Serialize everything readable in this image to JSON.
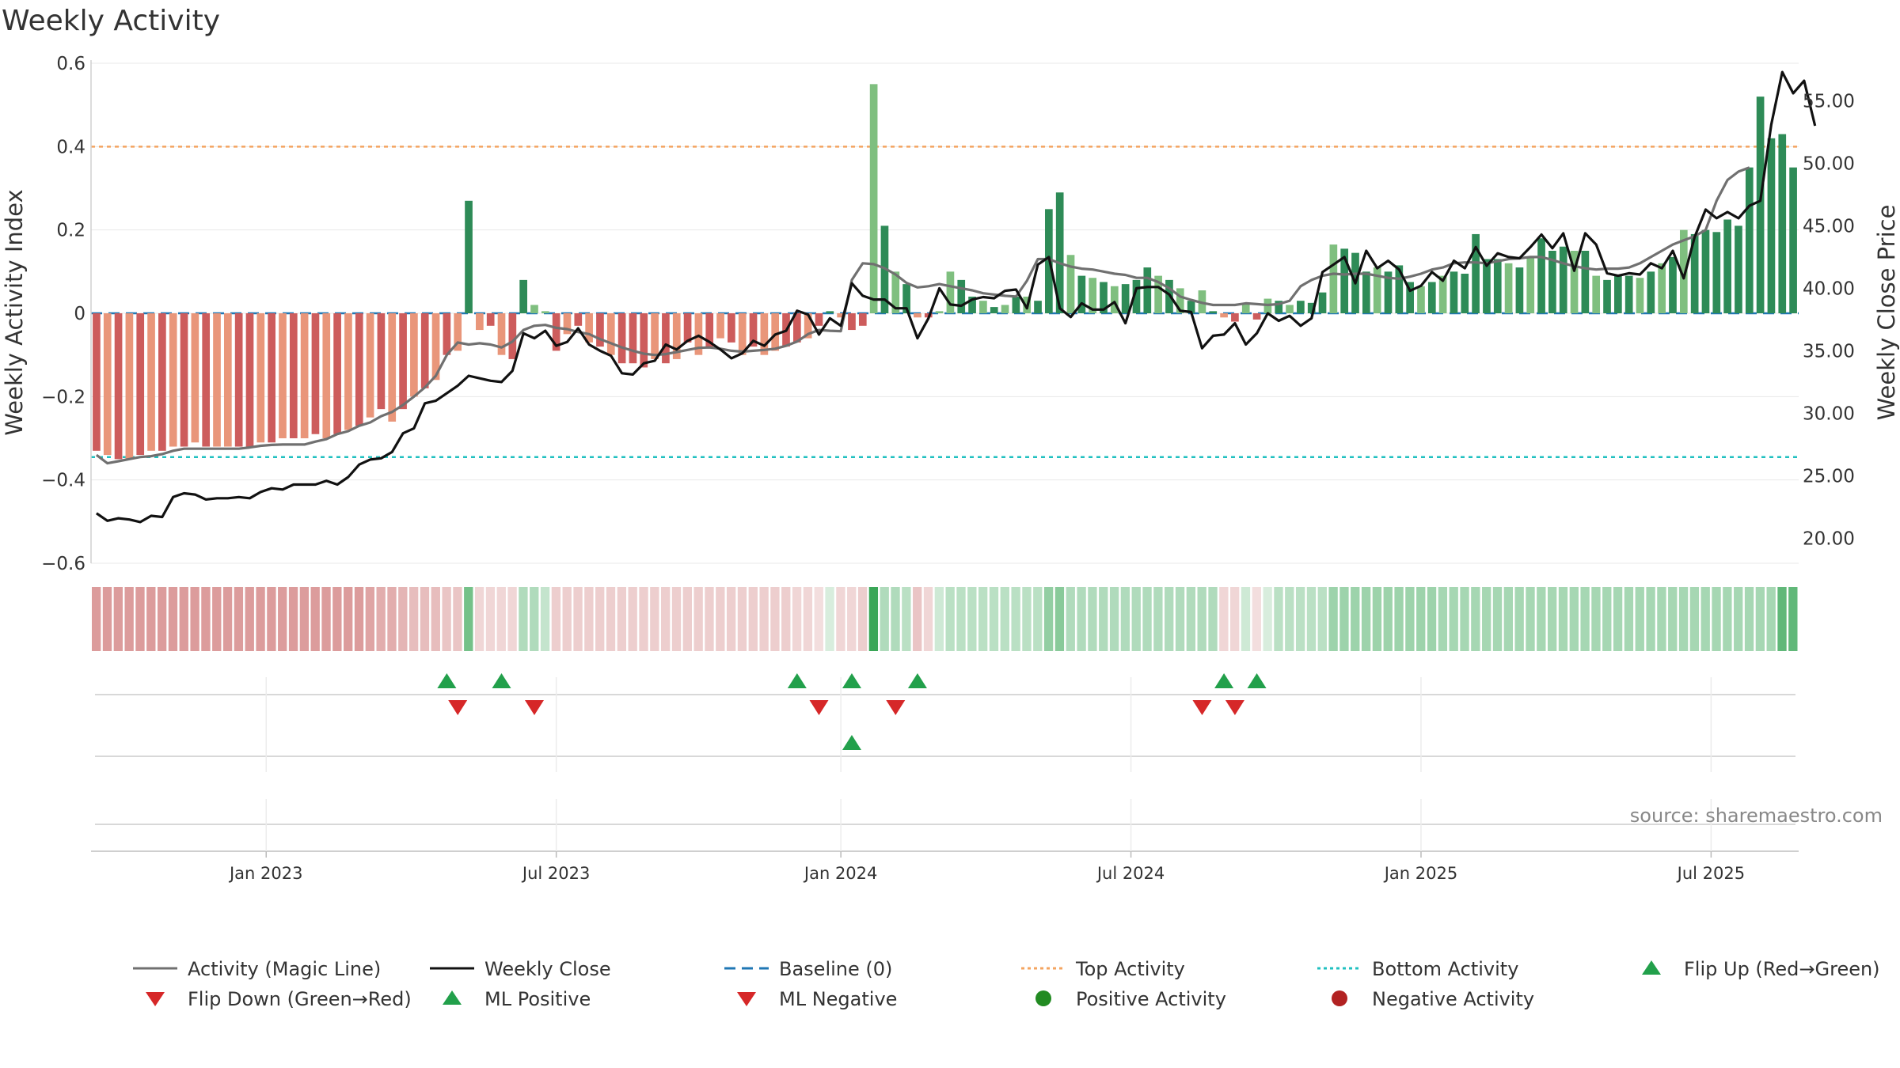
{
  "chart_data": {
    "type": "bar+line",
    "title": "Weekly Activity",
    "ylabel_left": "Weekly Activity Index",
    "ylabel_right": "Weekly Close Price",
    "ylim_left": [
      -0.6,
      0.6
    ],
    "ylim_right": [
      18,
      58
    ],
    "left_ticks": [
      {
        "value": 0.6,
        "label": "0.6"
      },
      {
        "value": 0.4,
        "label": "0.4"
      },
      {
        "value": 0.2,
        "label": "0.2"
      },
      {
        "value": 0,
        "label": "0"
      },
      {
        "value": -0.2,
        "label": "−0.2"
      },
      {
        "value": -0.4,
        "label": "−0.4"
      },
      {
        "value": -0.6,
        "label": "−0.6"
      }
    ],
    "right_ticks": [
      {
        "value": 55,
        "label": "55.00"
      },
      {
        "value": 50,
        "label": "50.00"
      },
      {
        "value": 45,
        "label": "45.00"
      },
      {
        "value": 40,
        "label": "40.00"
      },
      {
        "value": 35,
        "label": "35.00"
      },
      {
        "value": 30,
        "label": "30.00"
      },
      {
        "value": 25,
        "label": "25.00"
      },
      {
        "value": 20,
        "label": "20.00"
      }
    ],
    "x_range_weeks": [
      0,
      160
    ],
    "x_ticks": [
      {
        "week": 15.5,
        "label": "Jan 2023"
      },
      {
        "week": 42,
        "label": "Jul 2023"
      },
      {
        "week": 68,
        "label": "Jan 2024"
      },
      {
        "week": 94.5,
        "label": "Jul 2024"
      },
      {
        "week": 121,
        "label": "Jan 2025"
      },
      {
        "week": 147.5,
        "label": "Jul 2025"
      }
    ],
    "top_activity": 0.4,
    "bottom_activity": -0.345,
    "activity": [
      -0.33,
      -0.34,
      -0.35,
      -0.35,
      -0.34,
      -0.33,
      -0.33,
      -0.32,
      -0.32,
      -0.31,
      -0.32,
      -0.32,
      -0.32,
      -0.32,
      -0.32,
      -0.31,
      -0.31,
      -0.3,
      -0.3,
      -0.3,
      -0.29,
      -0.3,
      -0.29,
      -0.28,
      -0.27,
      -0.25,
      -0.23,
      -0.26,
      -0.23,
      -0.2,
      -0.18,
      -0.16,
      -0.1,
      -0.09,
      0.27,
      -0.04,
      -0.03,
      -0.1,
      -0.11,
      0.08,
      0.02,
      0.005,
      -0.09,
      -0.05,
      -0.03,
      -0.07,
      -0.08,
      -0.1,
      -0.12,
      -0.12,
      -0.13,
      -0.11,
      -0.12,
      -0.11,
      -0.07,
      -0.1,
      -0.08,
      -0.06,
      -0.07,
      -0.1,
      -0.08,
      -0.1,
      -0.09,
      -0.08,
      -0.07,
      -0.06,
      -0.03,
      0.005,
      -0.01,
      -0.04,
      -0.03,
      0.55,
      0.21,
      0.1,
      0.07,
      -0.01,
      -0.01,
      0.005,
      0.1,
      0.08,
      0.04,
      0.03,
      0.015,
      0.02,
      0.04,
      0.04,
      0.03,
      0.25,
      0.29,
      0.14,
      0.09,
      0.085,
      0.075,
      0.065,
      0.07,
      0.08,
      0.11,
      0.09,
      0.08,
      0.06,
      0.03,
      0.055,
      0.005,
      -0.01,
      -0.02,
      0.025,
      -0.015,
      0.035,
      0.03,
      0.02,
      0.03,
      0.025,
      0.05,
      0.165,
      0.155,
      0.145,
      0.1,
      0.11,
      0.1,
      0.115,
      0.075,
      0.065,
      0.075,
      0.09,
      0.1,
      0.095,
      0.19,
      0.13,
      0.13,
      0.12,
      0.11,
      0.135,
      0.18,
      0.15,
      0.16,
      0.15,
      0.15,
      0.09,
      0.08,
      0.09,
      0.09,
      0.085,
      0.1,
      0.12,
      0.135,
      0.2,
      0.19,
      0.2,
      0.195,
      0.225,
      0.21,
      0.35,
      0.52,
      0.42,
      0.43,
      0.35
    ],
    "bars_dark": [
      0,
      2,
      4,
      6,
      8,
      10,
      13,
      14,
      16,
      18,
      20,
      22,
      24,
      26,
      28,
      30,
      32,
      34,
      36,
      38,
      39,
      42,
      44,
      46,
      48,
      49,
      50,
      52,
      54,
      56,
      58,
      60,
      63,
      64,
      66,
      67,
      69,
      70,
      72,
      74,
      76,
      79,
      80,
      82,
      84,
      86,
      87,
      88,
      90,
      92,
      94,
      95,
      96,
      98,
      100,
      102,
      104,
      106,
      108,
      110,
      111,
      112,
      114,
      115,
      116,
      118,
      119,
      120,
      122,
      124,
      125,
      126,
      127,
      128,
      130,
      132,
      133,
      134,
      136,
      138,
      139,
      140,
      142,
      144,
      146,
      147,
      148,
      149,
      150,
      151,
      152,
      153,
      154,
      155,
      156
    ],
    "close": [
      22,
      21.4,
      21.6,
      21.5,
      21.3,
      21.8,
      21.7,
      23.3,
      23.6,
      23.5,
      23.1,
      23.2,
      23.2,
      23.3,
      23.2,
      23.7,
      24.0,
      23.9,
      24.3,
      24.3,
      24.3,
      24.6,
      24.3,
      24.9,
      25.9,
      26.3,
      26.4,
      26.9,
      28.4,
      28.8,
      30.8,
      31.0,
      31.6,
      32.2,
      33.0,
      32.8,
      32.6,
      32.5,
      33.4,
      36.4,
      36.0,
      36.6,
      35.4,
      35.7,
      36.8,
      35.5,
      35.0,
      34.6,
      33.2,
      33.1,
      34.0,
      34.2,
      35.5,
      35.1,
      35.8,
      36.2,
      35.7,
      35.1,
      34.4,
      34.8,
      35.8,
      35.4,
      36.3,
      36.6,
      38.2,
      37.9,
      36.3,
      37.6,
      37.0,
      40.4,
      39.4,
      39.1,
      39.1,
      38.4,
      38.4,
      36.0,
      37.6,
      40.0,
      38.7,
      38.6,
      39.1,
      39.3,
      39.2,
      39.8,
      39.9,
      38.4,
      41.9,
      42.5,
      38.4,
      37.7,
      38.8,
      38.3,
      38.3,
      38.9,
      37.2,
      40.0,
      40.1,
      40.1,
      39.5,
      38.2,
      38.1,
      35.2,
      36.2,
      36.3,
      37.2,
      35.5,
      36.4,
      38.0,
      37.4,
      37.8,
      37.0,
      37.6,
      41.3,
      41.9,
      42.5,
      40.4,
      43.0,
      41.6,
      42.2,
      41.5,
      39.8,
      40.2,
      41.3,
      40.6,
      42.2,
      41.6,
      43.3,
      41.8,
      42.8,
      42.5,
      42.4,
      43.3,
      44.3,
      43.2,
      44.4,
      41.4,
      44.4,
      43.5,
      41.2,
      41.0,
      41.2,
      41.1,
      42.0,
      41.6,
      43.0,
      40.8,
      44.1,
      46.3,
      45.6,
      46.1,
      45.6,
      46.6,
      47.0,
      53.1,
      57.3,
      55.6,
      56.6,
      53.0
    ],
    "magic": [
      -0.34,
      -0.36,
      -0.355,
      -0.35,
      -0.345,
      -0.343,
      -0.338,
      -0.33,
      -0.325,
      -0.325,
      -0.325,
      -0.325,
      -0.325,
      -0.325,
      -0.322,
      -0.318,
      -0.316,
      -0.315,
      -0.315,
      -0.315,
      -0.308,
      -0.302,
      -0.29,
      -0.283,
      -0.27,
      -0.262,
      -0.247,
      -0.237,
      -0.22,
      -0.2,
      -0.178,
      -0.15,
      -0.1,
      -0.07,
      -0.075,
      -0.072,
      -0.075,
      -0.082,
      -0.068,
      -0.04,
      -0.03,
      -0.028,
      -0.035,
      -0.038,
      -0.045,
      -0.05,
      -0.062,
      -0.072,
      -0.082,
      -0.09,
      -0.097,
      -0.1,
      -0.098,
      -0.093,
      -0.088,
      -0.083,
      -0.082,
      -0.085,
      -0.09,
      -0.092,
      -0.09,
      -0.088,
      -0.085,
      -0.078,
      -0.068,
      -0.05,
      -0.04,
      -0.042,
      -0.043,
      0.08,
      0.12,
      0.118,
      0.108,
      0.093,
      0.073,
      0.062,
      0.065,
      0.07,
      0.065,
      0.06,
      0.055,
      0.048,
      0.045,
      0.042,
      0.04,
      0.078,
      0.13,
      0.13,
      0.12,
      0.112,
      0.107,
      0.105,
      0.1,
      0.095,
      0.092,
      0.085,
      0.085,
      0.075,
      0.06,
      0.04,
      0.032,
      0.025,
      0.02,
      0.02,
      0.02,
      0.024,
      0.022,
      0.02,
      0.022,
      0.03,
      0.065,
      0.08,
      0.09,
      0.095,
      0.093,
      0.095,
      0.095,
      0.09,
      0.085,
      0.083,
      0.088,
      0.095,
      0.105,
      0.11,
      0.12,
      0.122,
      0.122,
      0.12,
      0.125,
      0.13,
      0.132,
      0.135,
      0.135,
      0.128,
      0.12,
      0.113,
      0.108,
      0.105,
      0.107,
      0.107,
      0.11,
      0.12,
      0.135,
      0.15,
      0.165,
      0.175,
      0.185,
      0.2,
      0.27,
      0.32,
      0.34,
      0.35
    ],
    "heat_strength": [
      0.6,
      0.6,
      0.6,
      0.6,
      0.6,
      0.6,
      0.6,
      0.6,
      0.6,
      0.6,
      0.6,
      0.6,
      0.6,
      0.6,
      0.6,
      0.6,
      0.6,
      0.6,
      0.6,
      0.6,
      0.6,
      0.6,
      0.6,
      0.6,
      0.6,
      0.55,
      0.5,
      0.5,
      0.45,
      0.4,
      0.4,
      0.4,
      0.35,
      0.35,
      0.7,
      0.25,
      0.25,
      0.25,
      0.25,
      0.4,
      0.4,
      0.3,
      0.3,
      0.3,
      0.3,
      0.3,
      0.3,
      0.3,
      0.3,
      0.3,
      0.3,
      0.3,
      0.3,
      0.3,
      0.3,
      0.3,
      0.3,
      0.3,
      0.3,
      0.3,
      0.3,
      0.3,
      0.3,
      0.3,
      0.25,
      0.25,
      0.2,
      0.2,
      0.25,
      0.25,
      0.3,
      1.0,
      0.4,
      0.4,
      0.35,
      0.35,
      0.25,
      0.25,
      0.35,
      0.35,
      0.35,
      0.35,
      0.35,
      0.35,
      0.35,
      0.35,
      0.35,
      0.55,
      0.6,
      0.4,
      0.4,
      0.4,
      0.4,
      0.4,
      0.4,
      0.4,
      0.4,
      0.4,
      0.4,
      0.4,
      0.4,
      0.4,
      0.4,
      0.25,
      0.25,
      0.25,
      0.2,
      0.2,
      0.35,
      0.35,
      0.35,
      0.35,
      0.35,
      0.5,
      0.5,
      0.5,
      0.5,
      0.5,
      0.5,
      0.5,
      0.5,
      0.5,
      0.5,
      0.45,
      0.45,
      0.45,
      0.45,
      0.45,
      0.45,
      0.45,
      0.45,
      0.45,
      0.45,
      0.45,
      0.45,
      0.45,
      0.45,
      0.45,
      0.45,
      0.45,
      0.45,
      0.45,
      0.45,
      0.45,
      0.45,
      0.45,
      0.45,
      0.45,
      0.45,
      0.45,
      0.45,
      0.45,
      0.45,
      0.45,
      0.8,
      0.8,
      0.65,
      0.65
    ],
    "flip_up_weeks": [
      32,
      37,
      64,
      69,
      75,
      103,
      106
    ],
    "flip_down_weeks": [
      33,
      40,
      66,
      73,
      101,
      104
    ],
    "ml_positive_weeks": [
      69
    ],
    "ml_negative_weeks": [],
    "colors": {
      "pos_dark": "#2e8b57",
      "pos_light": "#7fbf7f",
      "neg_dark": "#cd5c5c",
      "neg_light": "#e9967a",
      "magic": "#707070",
      "close": "#111111",
      "baseline": "#1f77b4",
      "top": "#f4a460",
      "bottom": "#20c0c0",
      "up_marker": "#22a04b",
      "down_marker": "#d62728",
      "grid": "#e8e8e8"
    },
    "legend": [
      {
        "label": "Activity (Magic Line)",
        "type": "line",
        "color": "#707070",
        "dash": ""
      },
      {
        "label": "Weekly Close",
        "type": "line",
        "color": "#111111",
        "dash": ""
      },
      {
        "label": "Baseline (0)",
        "type": "line",
        "color": "#1f77b4",
        "dash": "14,8"
      },
      {
        "label": "Top Activity",
        "type": "line",
        "color": "#f4a460",
        "dash": "4,4"
      },
      {
        "label": "Bottom Activity",
        "type": "line",
        "color": "#20c0c0",
        "dash": "4,4"
      },
      {
        "label": "Flip Up (Red→Green)",
        "type": "tri-up",
        "color": "#22a04b"
      },
      {
        "label": "Flip Down (Green→Red)",
        "type": "tri-down",
        "color": "#d62728"
      },
      {
        "label": "ML Positive",
        "type": "tri-up",
        "color": "#22a04b"
      },
      {
        "label": "ML Negative",
        "type": "tri-down",
        "color": "#d62728"
      },
      {
        "label": "Positive Activity",
        "type": "dot",
        "color": "#228b22"
      },
      {
        "label": "Negative Activity",
        "type": "dot",
        "color": "#b22222"
      }
    ],
    "source": "source: sharemaestro.com"
  }
}
